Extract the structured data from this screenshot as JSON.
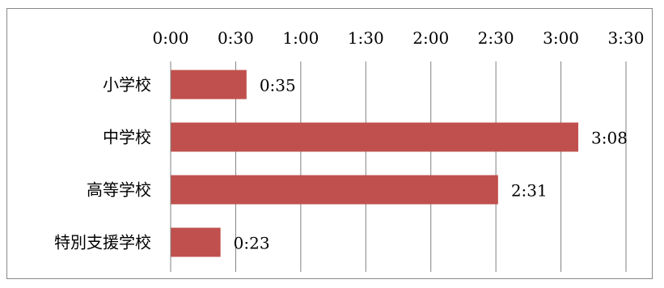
{
  "chart_data": {
    "type": "bar",
    "orientation": "horizontal",
    "categories": [
      "小学校",
      "中学校",
      "高等学校",
      "特別支援学校"
    ],
    "values_minutes": [
      35,
      188,
      151,
      23
    ],
    "data_labels": [
      "0:35",
      "3:08",
      "2:31",
      "0:23"
    ],
    "x_tick_labels": [
      "0:00",
      "0:30",
      "1:00",
      "1:30",
      "2:00",
      "2:30",
      "3:00",
      "3:30"
    ],
    "xlim_minutes": [
      0,
      210
    ],
    "x_axis_position": "top",
    "grid": "vertical",
    "legend": "none",
    "bar_color": "#c0504d",
    "title": "",
    "xlabel": "",
    "ylabel": ""
  }
}
